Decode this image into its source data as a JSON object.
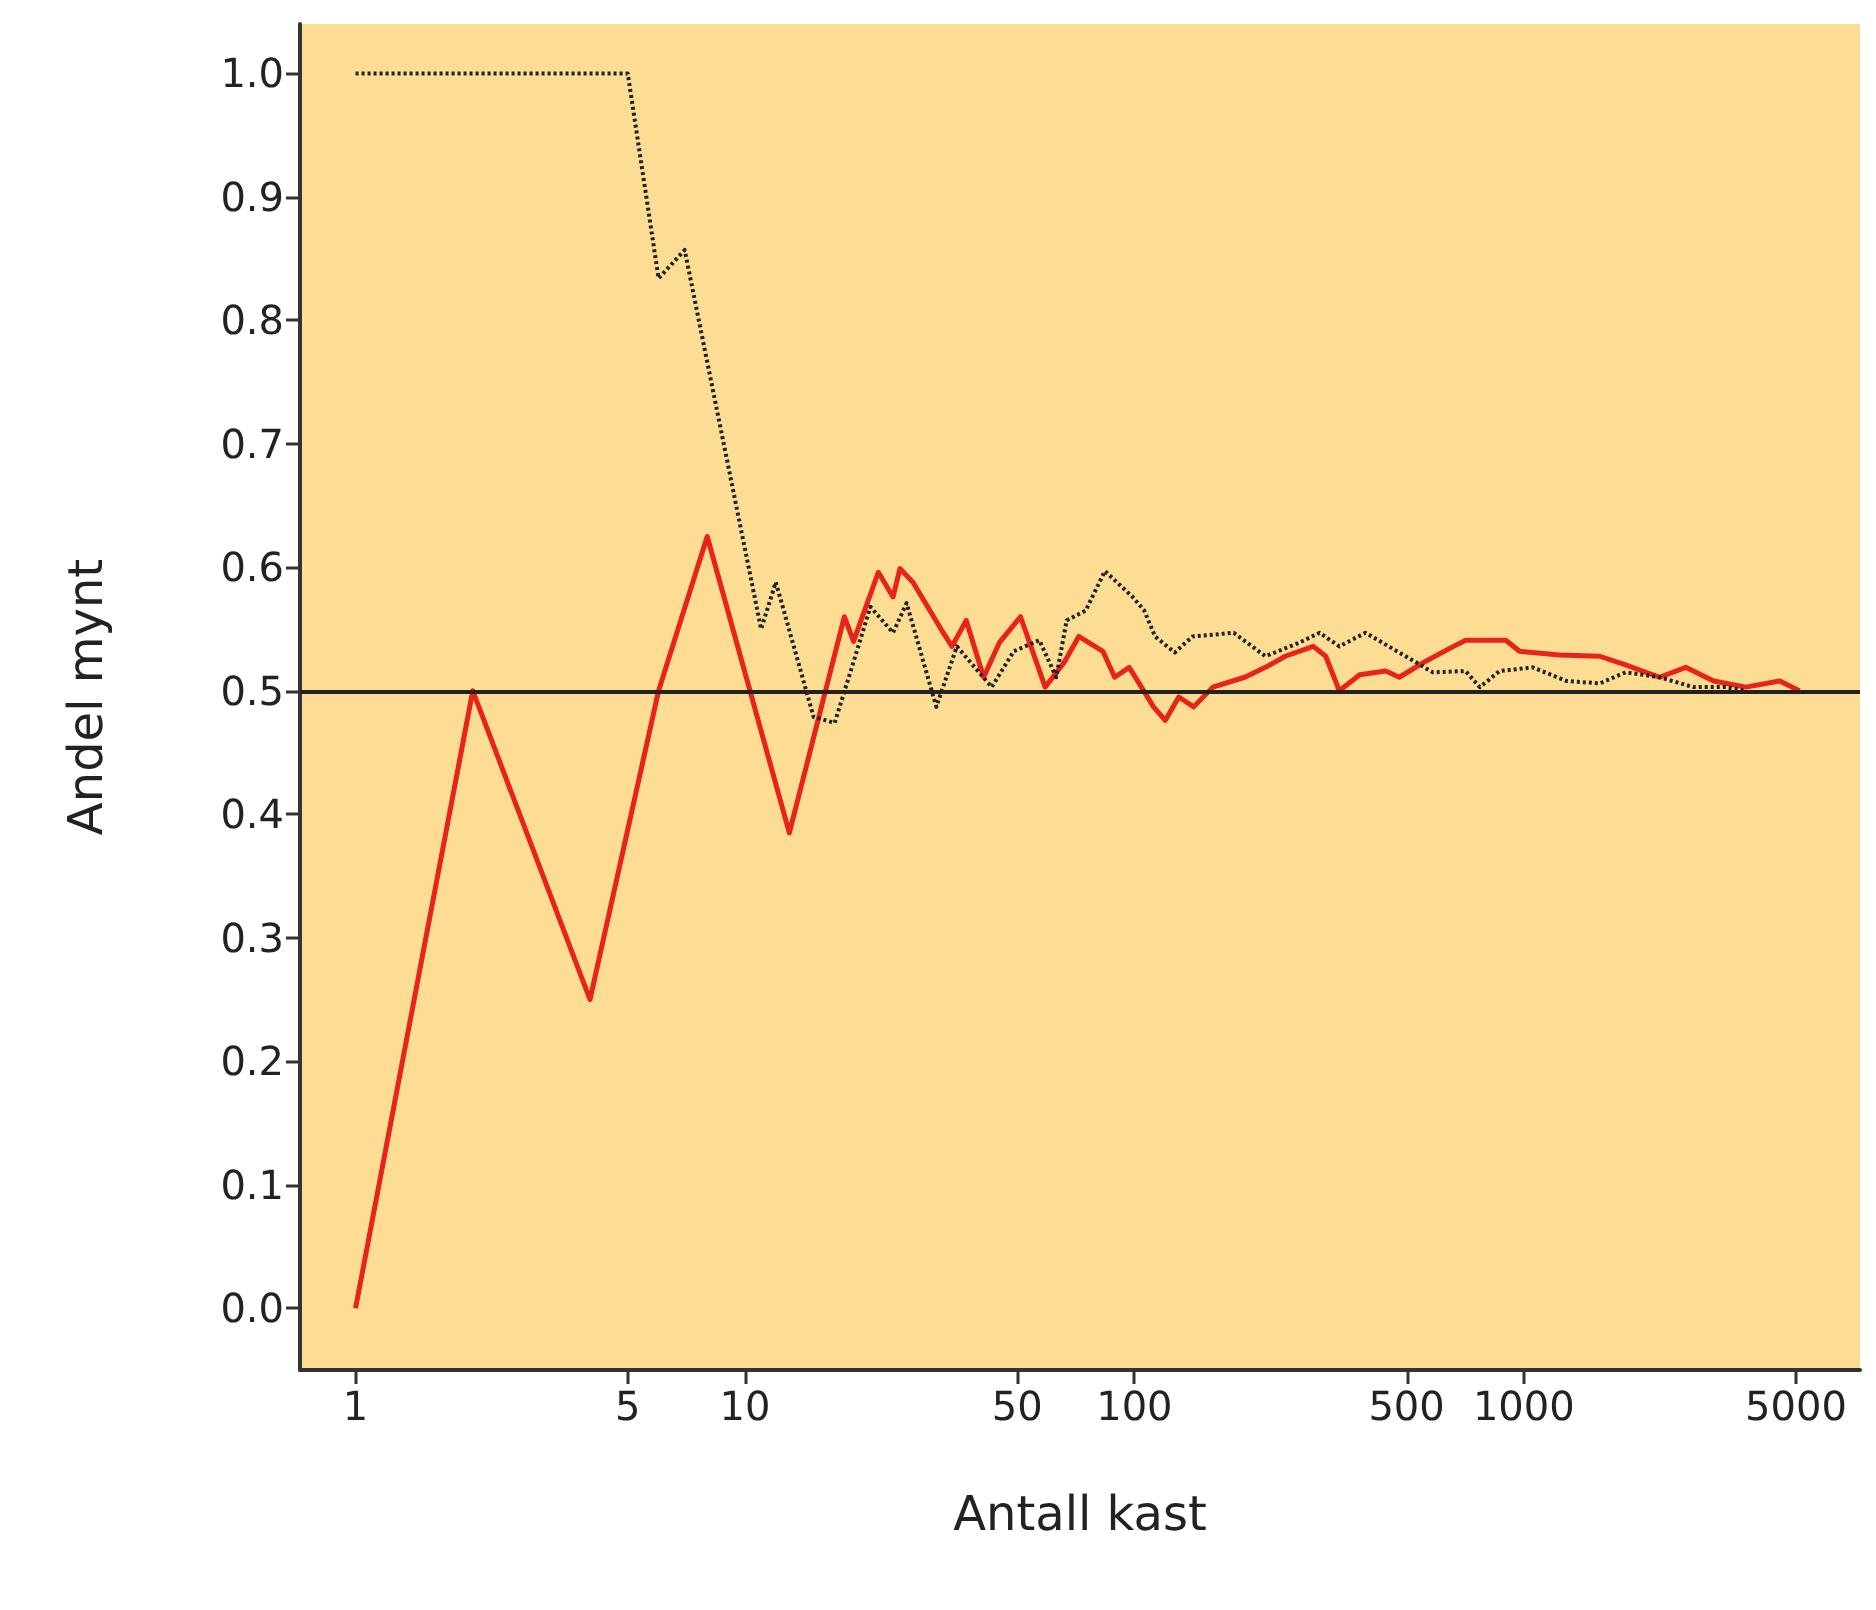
{
  "chart_data": {
    "type": "line",
    "xlabel": "Antall kast",
    "ylabel": "Andel mynt",
    "log": "x",
    "xlim": [
      0.72,
      7300
    ],
    "xticks": [
      1,
      5,
      10,
      50,
      100,
      500,
      1000,
      5000
    ],
    "ylim": [
      -0.05,
      1.04
    ],
    "yticks": [
      {
        "value": 0,
        "label": "0.0"
      },
      0.1,
      0.2,
      0.3,
      0.4,
      0.5,
      0.6,
      0.7,
      0.8,
      0.9,
      {
        "value": 1,
        "label": "1.0"
      }
    ],
    "grid": false,
    "marker": "none",
    "ref_lines": [
      {
        "axis": "y",
        "value": 0.5,
        "color": "#222222",
        "line_style": "solid"
      }
    ],
    "series": [
      {
        "color": "#e8231a",
        "line_style": "solid",
        "x": [
          1,
          2,
          4,
          6,
          8,
          13,
          18,
          19,
          22,
          24,
          25,
          27,
          32,
          34,
          37,
          41,
          45,
          51,
          59,
          66,
          72,
          83,
          89,
          97,
          112,
          120,
          130,
          142,
          159,
          192,
          217,
          244,
          288,
          310,
          336,
          379,
          442,
          479,
          560,
          660,
          709,
          899,
          975,
          1235,
          1566,
          1825,
          2232,
          2605,
          3073,
          3715,
          4540,
          5100
        ],
        "values": [
          0,
          0.5,
          0.25,
          0.5,
          0.625,
          0.385,
          0.56,
          0.54,
          0.596,
          0.576,
          0.599,
          0.588,
          0.549,
          0.536,
          0.557,
          0.511,
          0.539,
          0.56,
          0.503,
          0.523,
          0.544,
          0.532,
          0.511,
          0.519,
          0.487,
          0.476,
          0.495,
          0.487,
          0.503,
          0.511,
          0.519,
          0.528,
          0.536,
          0.528,
          0.5,
          0.513,
          0.516,
          0.511,
          0.524,
          0.536,
          0.541,
          0.541,
          0.532,
          0.529,
          0.528,
          0.521,
          0.511,
          0.519,
          0.508,
          0.503,
          0.508,
          0.5
        ]
      },
      {
        "color": "#222222",
        "line_style": "dotted",
        "x": [
          1,
          5,
          6,
          7,
          11,
          12,
          15,
          17,
          21,
          24,
          26,
          31,
          35,
          43,
          49,
          57,
          63,
          67,
          75,
          84,
          99,
          106,
          113,
          127,
          141,
          180,
          217,
          265,
          299,
          336,
          392,
          479,
          584,
          709,
          771,
          867,
          1054,
          1285,
          1566,
          1825,
          2232,
          2723,
          3300,
          3715
        ],
        "values": [
          1,
          1,
          0.834,
          0.857,
          0.55,
          0.588,
          0.479,
          0.474,
          0.568,
          0.547,
          0.571,
          0.487,
          0.536,
          0.503,
          0.532,
          0.541,
          0.511,
          0.557,
          0.565,
          0.597,
          0.576,
          0.565,
          0.544,
          0.531,
          0.544,
          0.547,
          0.528,
          0.539,
          0.547,
          0.536,
          0.547,
          0.531,
          0.515,
          0.516,
          0.503,
          0.516,
          0.519,
          0.508,
          0.506,
          0.515,
          0.511,
          0.503,
          0.503,
          0.5
        ]
      }
    ]
  }
}
